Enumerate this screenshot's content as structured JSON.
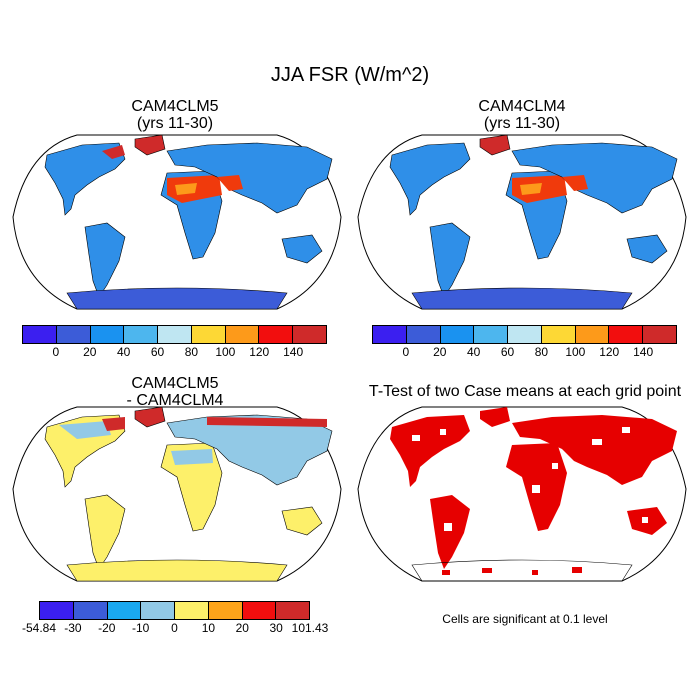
{
  "title": "JJA FSR (W/m^2)",
  "panels": {
    "top_left": {
      "line1": "CAM4CLM5",
      "line2": "(yrs 11-30)"
    },
    "top_right": {
      "line1": "CAM4CLM4",
      "line2": "(yrs 11-30)"
    },
    "bottom_left": {
      "line1": "CAM4CLM5",
      "line2": "- CAM4CLM4"
    },
    "bottom_right": {
      "line1": "T-Test of two Case means at each grid point"
    }
  },
  "colorbar_main": {
    "colors": [
      "#3b1ff0",
      "#3c5cd8",
      "#1a92f0",
      "#4db6ee",
      "#bfe6f2",
      "#fdd835",
      "#fd9a1a",
      "#f20e0e",
      "#cf2a2a"
    ],
    "ticks": [
      "0",
      "20",
      "40",
      "60",
      "80",
      "100",
      "120",
      "140"
    ]
  },
  "colorbar_diff": {
    "colors": [
      "#3b1ff0",
      "#3c5cd8",
      "#1aa8f0",
      "#92c9e6",
      "#fdf06a",
      "#fda41a",
      "#f20e0e",
      "#cf2a2a"
    ],
    "ticks": [
      "-54.84",
      "-30",
      "-20",
      "-10",
      "0",
      "10",
      "20",
      "30",
      "101.43"
    ]
  },
  "significance_note": "Cells are significant at 0.1 level",
  "colors": {
    "land_main": "#2f8fe8",
    "antarctica_main": "#3c5cd8",
    "greenland_main": "#cf2a2a",
    "desert_main": "#f03a0c",
    "desert_mid": "#fd9a1a",
    "land_diff": "#fdf06a",
    "diff_blue": "#92c9e6",
    "diff_red": "#cf2a2a",
    "ttest_red": "#e60000"
  }
}
